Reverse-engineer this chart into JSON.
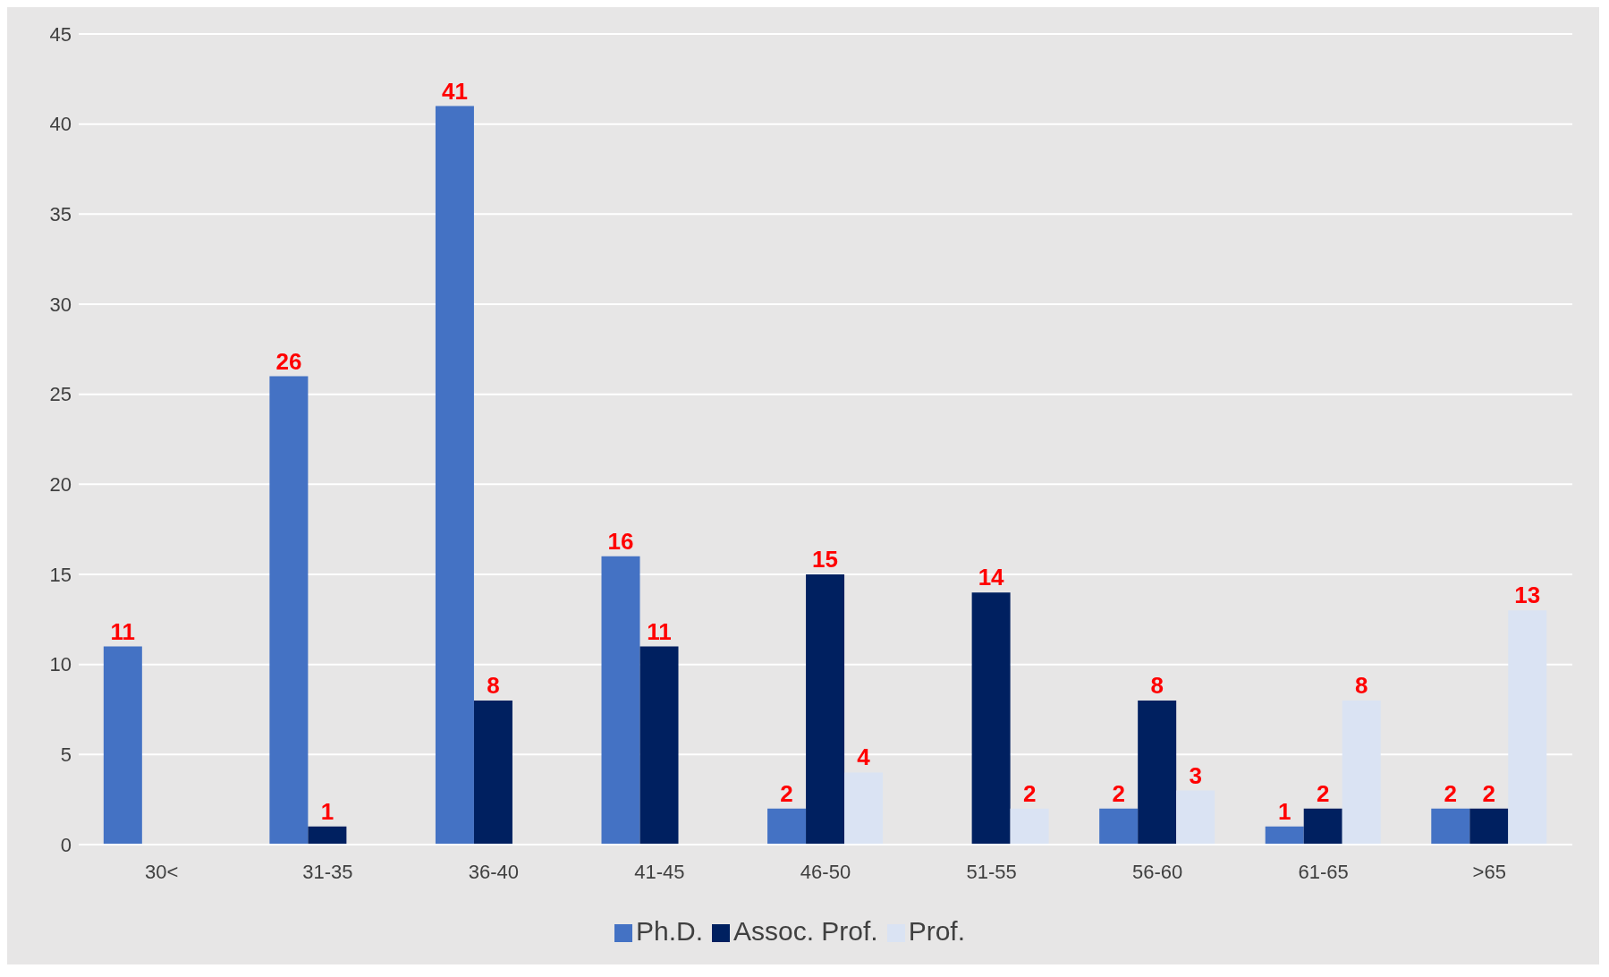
{
  "chart_data": {
    "type": "bar",
    "categories": [
      "30<",
      "31-35",
      "36-40",
      "41-45",
      "46-50",
      "51-55",
      "56-60",
      "61-65",
      ">65"
    ],
    "series": [
      {
        "name": "Ph.D.",
        "color": "#4472c4",
        "values": [
          11,
          26,
          41,
          16,
          2,
          0,
          2,
          1,
          2
        ],
        "value_labels": [
          "11",
          "26",
          "41",
          "16",
          "2",
          null,
          "2",
          "1",
          "2"
        ]
      },
      {
        "name": "Assoc. Prof.",
        "color": "#002060",
        "values": [
          0,
          1,
          8,
          11,
          15,
          14,
          8,
          2,
          2
        ],
        "value_labels": [
          null,
          "1",
          "8",
          "11",
          "15",
          "14",
          "8",
          "2",
          "2"
        ]
      },
      {
        "name": "Prof.",
        "color": "#dae3f3",
        "values": [
          0,
          0,
          0,
          0,
          4,
          2,
          3,
          8,
          13
        ],
        "value_labels": [
          null,
          null,
          null,
          null,
          "4",
          "2",
          "3",
          "8",
          "13"
        ]
      }
    ],
    "ylim": [
      0,
      45
    ],
    "yticks": [
      0,
      5,
      10,
      15,
      20,
      25,
      30,
      35,
      40,
      45
    ],
    "grid": "y",
    "legend": "bottom"
  }
}
